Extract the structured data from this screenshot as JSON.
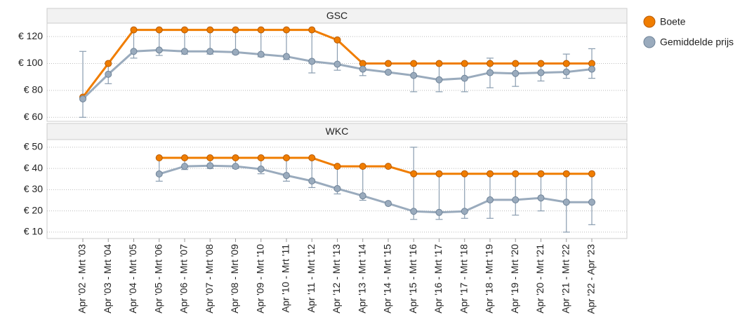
{
  "chart_data": [
    {
      "type": "line",
      "title": "GSC",
      "ylim": [
        57,
        130
      ],
      "yticks": [
        {
          "value": 60,
          "label": "€ 60"
        },
        {
          "value": 80,
          "label": "€ 80"
        },
        {
          "value": 100,
          "label": "€ 100"
        },
        {
          "value": 120,
          "label": "€ 120"
        }
      ],
      "grid": true,
      "legend": "right",
      "series": [
        {
          "name": "Boete",
          "color": "#f07d00",
          "values": [
            75,
            100,
            125,
            125,
            125,
            125,
            125,
            125,
            125,
            125,
            117.5,
            100,
            100,
            100,
            100,
            100,
            100,
            100,
            100,
            100,
            100
          ]
        },
        {
          "name": "Gemiddelde prijs",
          "color": "#9aabbd",
          "values": [
            73.7,
            92,
            109,
            110,
            109,
            109,
            108.4,
            106.8,
            105.2,
            101.6,
            99.5,
            95.8,
            93.5,
            91.1,
            87.9,
            89,
            93.2,
            92.6,
            93.2,
            93.7,
            95.8
          ],
          "min": [
            60,
            85,
            104,
            106,
            107,
            107,
            107,
            105,
            103,
            93,
            95,
            91,
            null,
            79,
            79,
            79,
            82,
            83,
            87,
            89,
            89
          ],
          "max": [
            109,
            100,
            125,
            125,
            125,
            125,
            125,
            125,
            125,
            125,
            117,
            100,
            null,
            100,
            100,
            100,
            104,
            100,
            100,
            107,
            111
          ]
        }
      ]
    },
    {
      "type": "line",
      "title": "WKC",
      "categories": [
        "Apr '02 - Mrt '03",
        "Apr '03 - Mrt '04",
        "Apr '04 - Mrt '05",
        "Apr '05 - Mrt '06",
        "Apr '06 - Mrt '07",
        "Apr '07 - Mrt '08",
        "Apr '08 - Mrt '09",
        "Apr '09 - Mrt '10",
        "Apr '10 - Mrt '11",
        "Apr '11 - Mrt '12",
        "Apr '12 - Mrt '13",
        "Apr '13 - Mrt '14",
        "Apr '14 - Mrt '15",
        "Apr '15 - Mrt '16",
        "Apr '16 - Mrt '17",
        "Apr '17 - Mrt '18",
        "Apr '18 - Mrt '19",
        "Apr '19 - Mrt '20",
        "Apr '20 - Mrt '21",
        "Apr '21 - Mrt '22",
        "Apr '22 - Apr '23"
      ],
      "ylim": [
        7,
        53.6
      ],
      "yticks": [
        {
          "value": 10,
          "label": "€ 10"
        },
        {
          "value": 20,
          "label": "€ 20"
        },
        {
          "value": 30,
          "label": "€ 30"
        },
        {
          "value": 40,
          "label": "€ 40"
        },
        {
          "value": 50,
          "label": "€ 50"
        }
      ],
      "grid": true,
      "series": [
        {
          "color": "#f07d00",
          "values": [
            null,
            null,
            null,
            45,
            45,
            45,
            45,
            45,
            45,
            45,
            41,
            41,
            41,
            37.5,
            37.5,
            37.5,
            37.5,
            37.5,
            37.5,
            37.5,
            37.5
          ]
        },
        {
          "color": "#9aabbd",
          "values": [
            null,
            null,
            null,
            37.4,
            41,
            41.3,
            41,
            39.7,
            36.7,
            34.1,
            30.5,
            27.1,
            23.5,
            19.8,
            19.3,
            19.8,
            25.2,
            25.2,
            26.1,
            24.1,
            24.1
          ],
          "min": [
            null,
            null,
            null,
            34,
            39.5,
            40,
            40,
            37.5,
            34,
            31,
            28,
            25,
            null,
            16,
            16,
            16.5,
            16.5,
            18,
            20,
            10,
            13.5
          ],
          "max": [
            null,
            null,
            null,
            45,
            45,
            45,
            45,
            45,
            45,
            45,
            41,
            41,
            null,
            50,
            37.5,
            37.5,
            37.5,
            37.5,
            37.5,
            37.5,
            37.5
          ]
        }
      ]
    }
  ]
}
